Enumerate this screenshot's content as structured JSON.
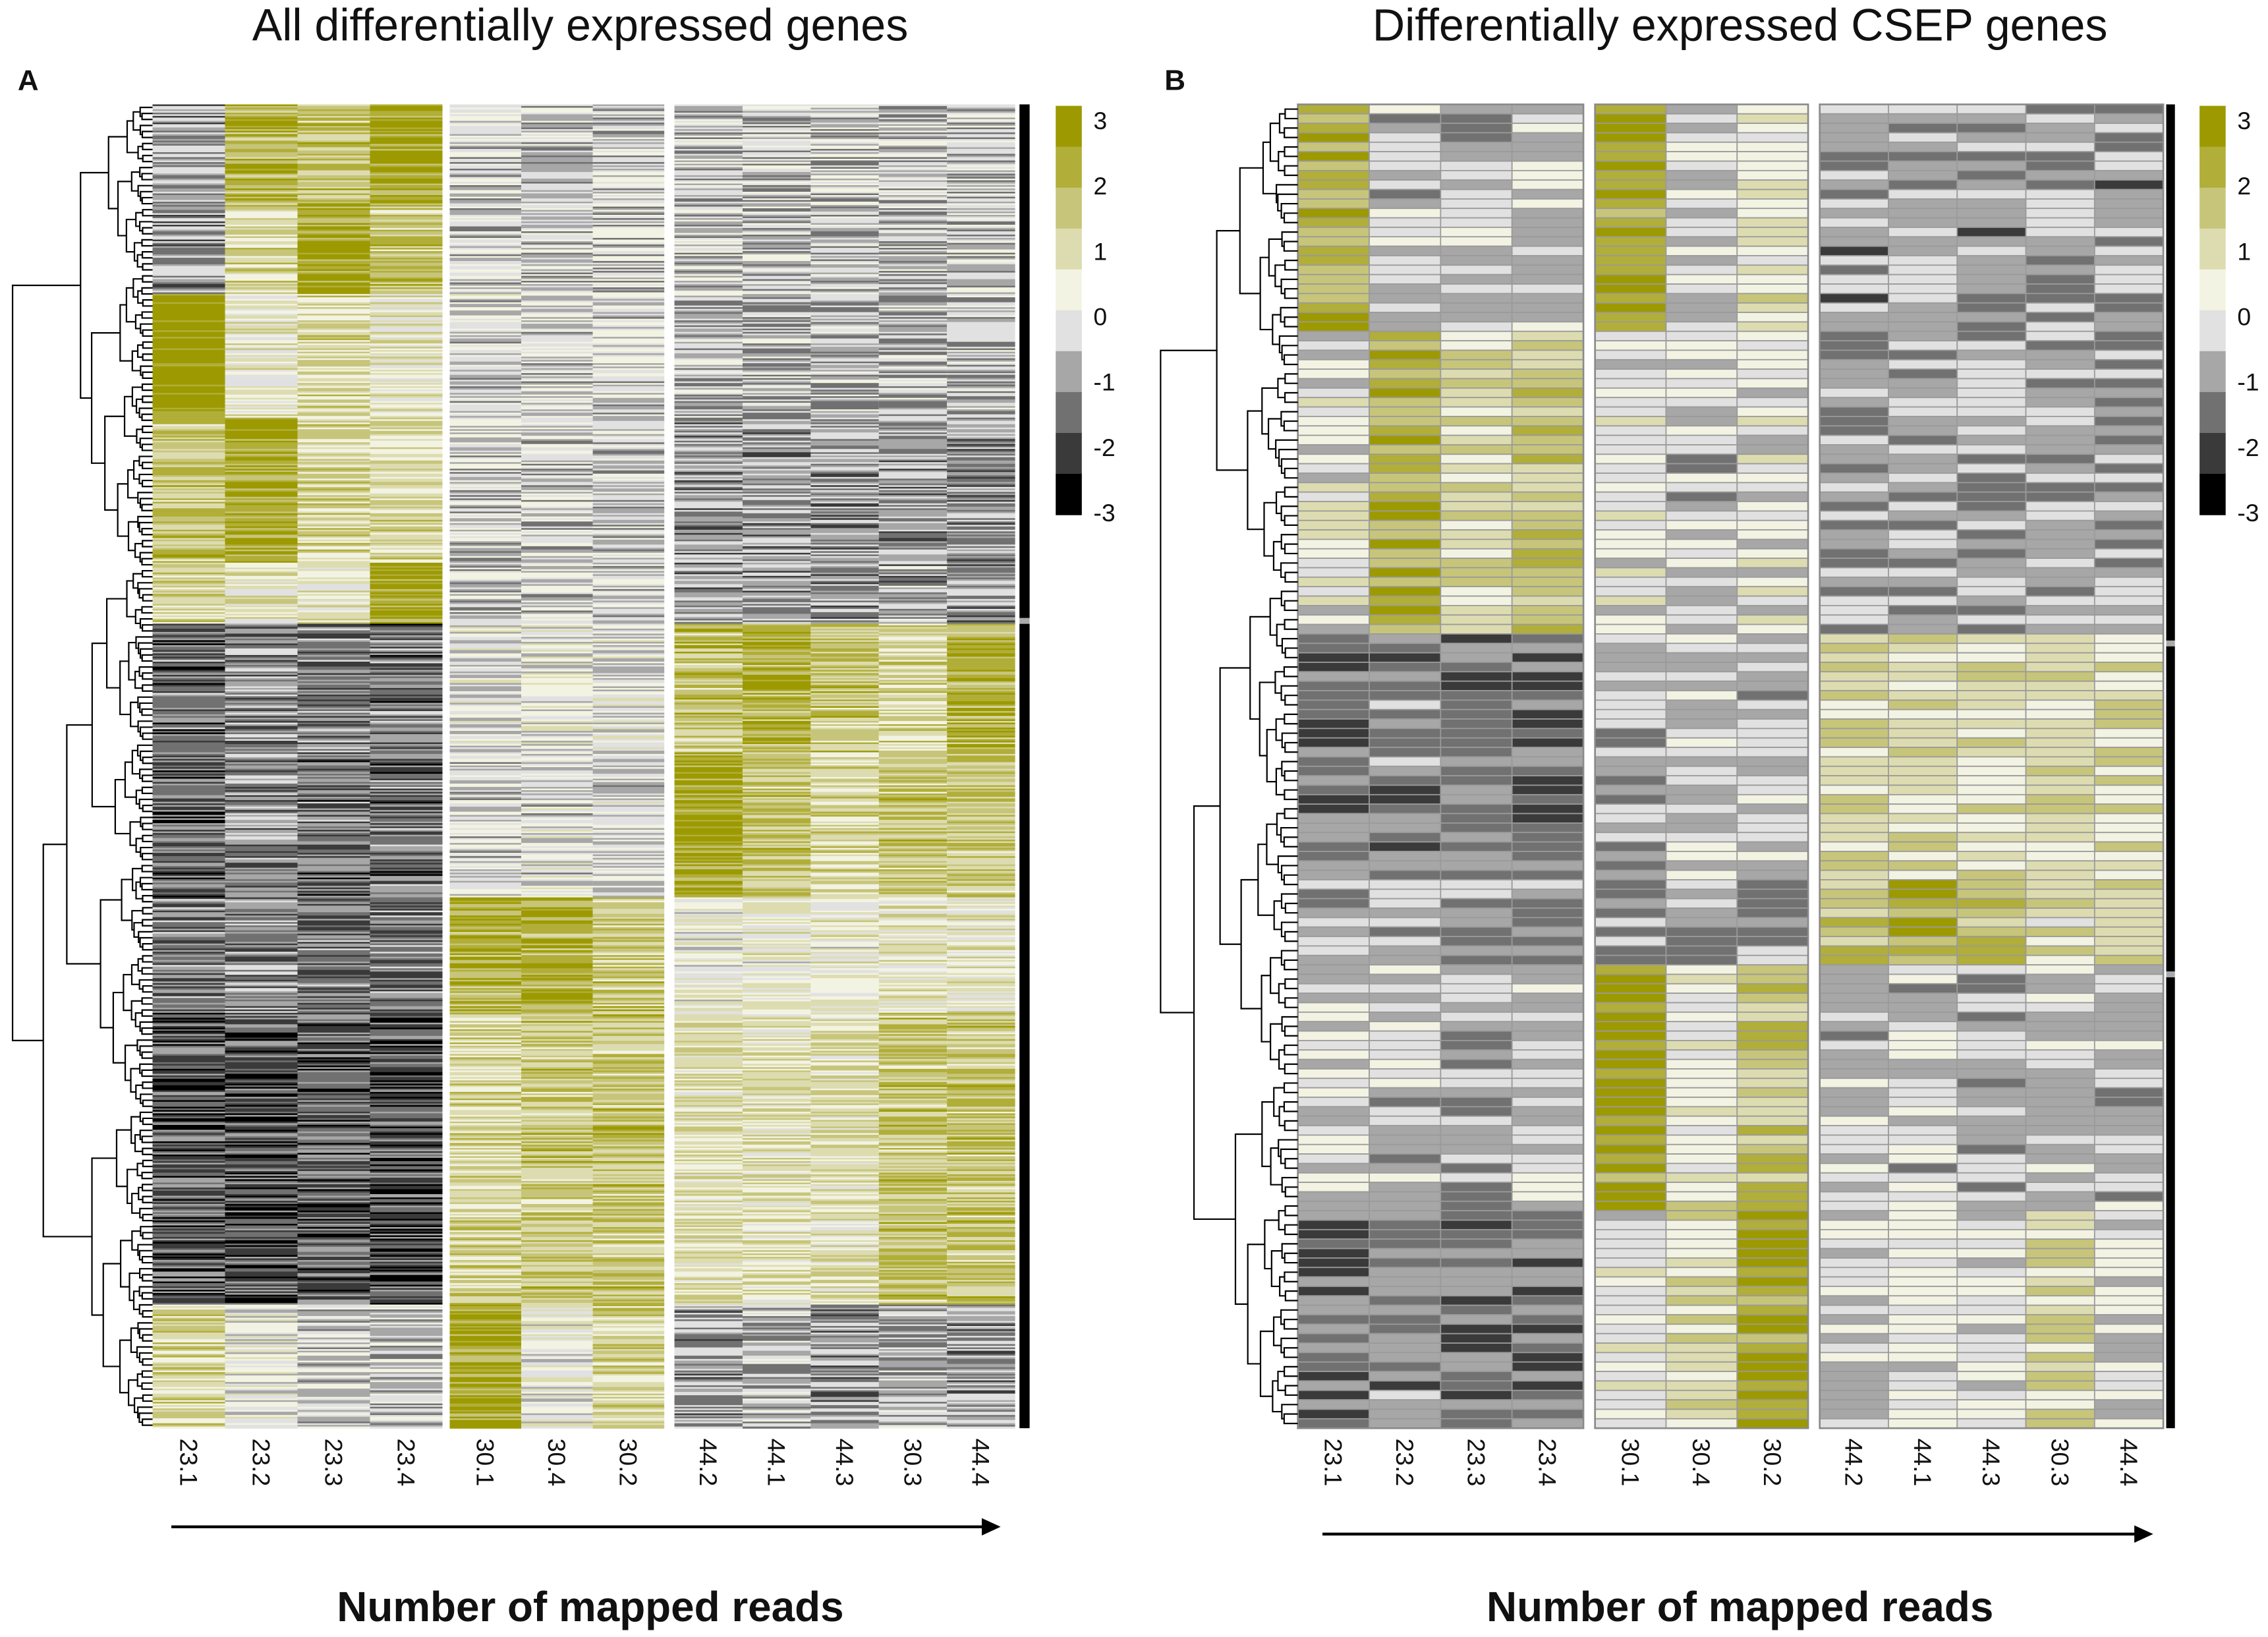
{
  "chart_data": [
    {
      "type": "heatmap",
      "panel_label": "A",
      "title": "All differentially expressed genes",
      "xlabel": "Number of mapped reads",
      "columns": [
        "23.1",
        "23.2",
        "23.3",
        "23.4",
        "30.1",
        "30.4",
        "30.2",
        "44.2",
        "44.1",
        "44.3",
        "30.3",
        "44.4"
      ],
      "column_groups": [
        4,
        3,
        5
      ],
      "row_clusters": 2,
      "cell_borders": false,
      "blocks_note": "Approximate mean z-score per column for each row block, top to bottom",
      "blocks": [
        {
          "rows": 60,
          "values": [
            -1,
            2,
            1.5,
            2.5,
            -0.5,
            -0.5,
            -0.5,
            -0.6,
            -0.6,
            -0.6,
            -0.6,
            -0.6
          ]
        },
        {
          "rows": 55,
          "values": [
            -1,
            1,
            2.5,
            1.5,
            -0.4,
            -0.5,
            -0.5,
            -0.6,
            -0.6,
            -0.6,
            -0.6,
            -0.6
          ]
        },
        {
          "rows": 75,
          "values": [
            3,
            0.5,
            1,
            0.5,
            -0.3,
            -0.4,
            -0.4,
            -0.8,
            -0.8,
            -0.8,
            -0.8,
            -0.8
          ]
        },
        {
          "rows": 88,
          "values": [
            1.5,
            2.5,
            1,
            1,
            -0.5,
            -0.5,
            -0.5,
            -1,
            -1,
            -1,
            -1,
            -1
          ]
        },
        {
          "rows": 37,
          "values": [
            1,
            0.5,
            0.5,
            2.5,
            -0.5,
            -0.5,
            -0.5,
            -1,
            -1,
            -1,
            -0.9,
            -1
          ]
        },
        {
          "rows": 78,
          "values": [
            -1.5,
            -1.2,
            -1.4,
            -1.5,
            -0.1,
            0,
            -0.2,
            1.5,
            2,
            1.5,
            1,
            2
          ]
        },
        {
          "rows": 88,
          "values": [
            -1.6,
            -1.3,
            -1.5,
            -1.5,
            -0.4,
            -0.3,
            -0.3,
            2.5,
            1.5,
            1,
            1.5,
            1.5
          ]
        },
        {
          "rows": 70,
          "values": [
            -1.3,
            -1.2,
            -1.3,
            -1.4,
            2,
            2,
            1.5,
            0.2,
            0.3,
            0.3,
            0.5,
            0.5
          ]
        },
        {
          "rows": 177,
          "values": [
            -1.8,
            -1.9,
            -1.6,
            -1.9,
            1,
            1.5,
            1.5,
            0.8,
            0.8,
            0.8,
            1.5,
            1.5
          ]
        },
        {
          "rows": 75,
          "values": [
            1,
            0,
            -0.5,
            -0.5,
            2.5,
            0,
            1,
            -1,
            -0.8,
            -1,
            -0.8,
            -1
          ]
        }
      ]
    },
    {
      "type": "heatmap",
      "panel_label": "B",
      "title": "Differentially expressed CSEP genes",
      "xlabel": "Number of mapped reads",
      "columns": [
        "23.1",
        "23.2",
        "23.3",
        "23.4",
        "30.1",
        "30.4",
        "30.2",
        "44.2",
        "44.1",
        "44.3",
        "30.3",
        "44.4"
      ],
      "column_groups": [
        4,
        3,
        5
      ],
      "row_clusters": 3,
      "cell_borders": true,
      "blocks": [
        {
          "rows": 24,
          "values": [
            2,
            -0.5,
            -0.6,
            -0.3,
            2.5,
            -0.3,
            0.5,
            -1.1,
            -0.8,
            -1.1,
            -0.8,
            -1.1
          ]
        },
        {
          "rows": 32,
          "values": [
            0,
            2,
            1,
            1.5,
            0,
            -0.5,
            0,
            -1,
            -0.8,
            -1,
            -0.8,
            -1
          ]
        },
        {
          "rows": 26,
          "values": [
            -1.4,
            -1.2,
            -1.3,
            -1.4,
            -0.8,
            -0.3,
            -0.5,
            1,
            1,
            0.8,
            0.8,
            1
          ]
        },
        {
          "rows": 9,
          "values": [
            -1,
            -0.8,
            -1,
            -1,
            -1,
            -0.9,
            -1,
            1.5,
            2,
            1.5,
            0.5,
            1.5
          ]
        },
        {
          "rows": 26,
          "values": [
            -0.3,
            -0.5,
            -0.8,
            -0.5,
            2.5,
            0.5,
            1.5,
            -0.5,
            -0.5,
            -0.6,
            -0.4,
            -0.6
          ]
        },
        {
          "rows": 23,
          "values": [
            -1.5,
            -1.3,
            -1.4,
            -1.6,
            0,
            1,
            2.5,
            -0.3,
            -0.3,
            -0.3,
            1,
            -0.3
          ]
        }
      ]
    }
  ],
  "color_scale": {
    "tick_labels": [
      "3",
      "2",
      "1",
      "0",
      "-1",
      "-2",
      "-3"
    ],
    "range": [
      -3,
      3
    ],
    "colors": [
      "#9c9a00",
      "#b1ae39",
      "#c7c57a",
      "#dddcb0",
      "#f3f3e3",
      "#e1e1e1",
      "#a7a7a7",
      "#717171",
      "#3a3a3a",
      "#000000"
    ]
  }
}
